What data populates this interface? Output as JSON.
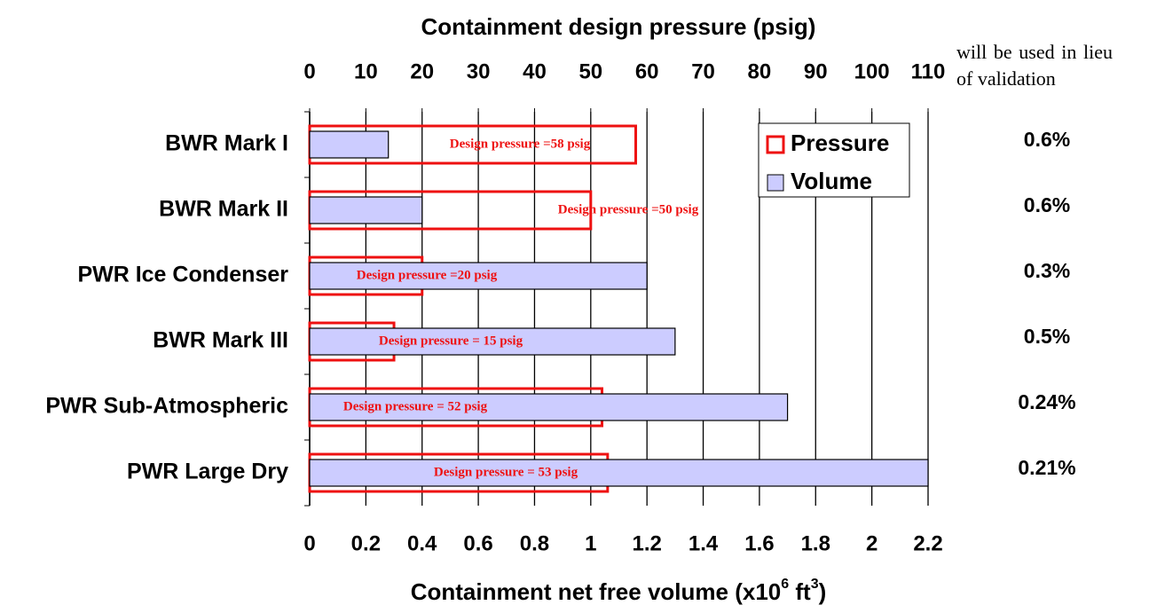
{
  "chart_data": {
    "type": "bar",
    "orientation": "horizontal",
    "x2label": "Containment design pressure (psig)",
    "xlabel": [
      "Containment net free volume (x10",
      "6",
      " ft",
      "3",
      ")"
    ],
    "categories": [
      "BWR Mark I",
      "BWR Mark II",
      "PWR Ice Condenser",
      "BWR Mark III",
      "PWR Sub-Atmospheric",
      "PWR Large Dry"
    ],
    "series": [
      {
        "name": "Pressure",
        "color": "#ee1111",
        "axis": "x2",
        "values": [
          58,
          50,
          20,
          15,
          52,
          53
        ],
        "value_labels": [
          "Design pressure =58 psig",
          "Design pressure =50 psig",
          "Design pressure =20 psig",
          "Design pressure = 15 psig",
          "Design pressure = 52 psig",
          "Design pressure = 53 psig"
        ]
      },
      {
        "name": "Volume",
        "color": "#ccccff",
        "values": [
          0.28,
          0.4,
          1.2,
          1.3,
          1.7,
          2.2
        ]
      }
    ],
    "xlim": [
      0,
      2.2
    ],
    "xticks": [
      0,
      0.2,
      0.4,
      0.6,
      0.8,
      1,
      1.2,
      1.4,
      1.6,
      1.8,
      2,
      2.2
    ],
    "x2lim": [
      0,
      110
    ],
    "x2ticks": [
      0,
      10,
      20,
      30,
      40,
      50,
      60,
      70,
      80,
      90,
      100,
      110
    ],
    "grid": true,
    "legend": "upper right",
    "right_labels": [
      "0.6%",
      "0.6%",
      "0.3%",
      "0.5%",
      "0.24%",
      "0.21%"
    ],
    "side_text": "will be used in lieu of validation"
  }
}
